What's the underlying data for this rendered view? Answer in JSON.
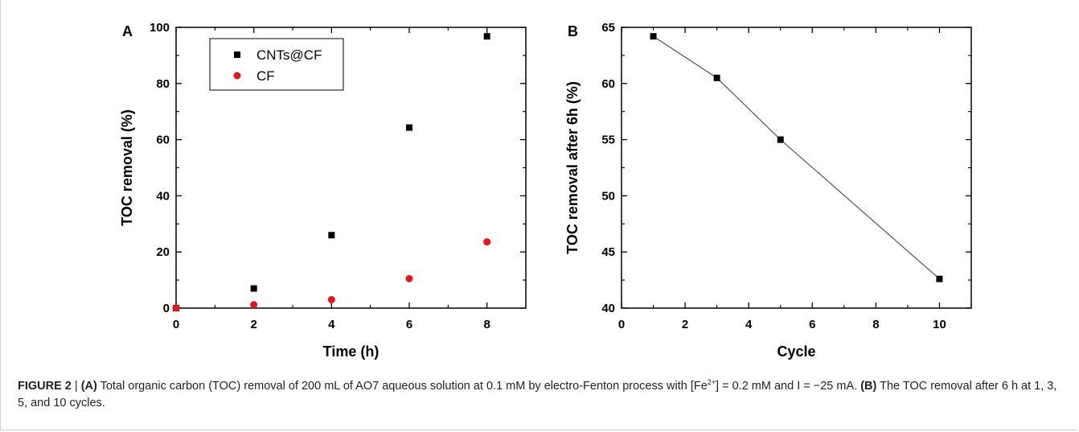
{
  "chart_data": [
    {
      "type": "scatter",
      "panel_label": "A",
      "xlabel": "Time (h)",
      "ylabel": "TOC removal (%)",
      "xlim": [
        0,
        9
      ],
      "ylim": [
        0,
        100
      ],
      "xticks": [
        "0",
        "2",
        "4",
        "6",
        "8"
      ],
      "yticks": [
        "0",
        "20",
        "40",
        "60",
        "80",
        "100"
      ],
      "legend_position": "top-left",
      "series": [
        {
          "name": "CNTs@CF",
          "color": "#000000",
          "marker": "square",
          "x": [
            0,
            2,
            4,
            6,
            8
          ],
          "y": [
            0,
            7,
            26,
            64.3,
            96.8
          ]
        },
        {
          "name": "CF",
          "color": "#e8141c",
          "marker": "circle",
          "x": [
            0,
            2,
            4,
            6,
            8
          ],
          "y": [
            0,
            1.2,
            3,
            10.5,
            23.6
          ]
        }
      ]
    },
    {
      "type": "line",
      "panel_label": "B",
      "xlabel": "Cycle",
      "ylabel": "TOC removal after 6h (%)",
      "xlim": [
        0,
        11
      ],
      "ylim": [
        40,
        65
      ],
      "xticks": [
        "0",
        "2",
        "4",
        "6",
        "8",
        "10"
      ],
      "yticks": [
        "40",
        "45",
        "50",
        "55",
        "60",
        "65"
      ],
      "series": [
        {
          "color": "#000000",
          "marker": "square",
          "x": [
            1,
            3,
            5,
            10
          ],
          "y": [
            64.2,
            60.5,
            55,
            42.6
          ]
        }
      ]
    }
  ],
  "caption": {
    "figure_label": "FIGURE 2",
    "separator": " | ",
    "a_label": "(A)",
    "a_text_1": " Total organic carbon (TOC) removal of 200 mL of AO7 aqueous solution at 0.1 mM by electro-Fenton process with [Fe",
    "a_sup": "2+",
    "a_text_2": "] = 0.2 mM and I = −25 mA. ",
    "b_label": "(B)",
    "b_text": " The TOC removal after 6 h at 1, 3, 5, and 10 cycles."
  }
}
